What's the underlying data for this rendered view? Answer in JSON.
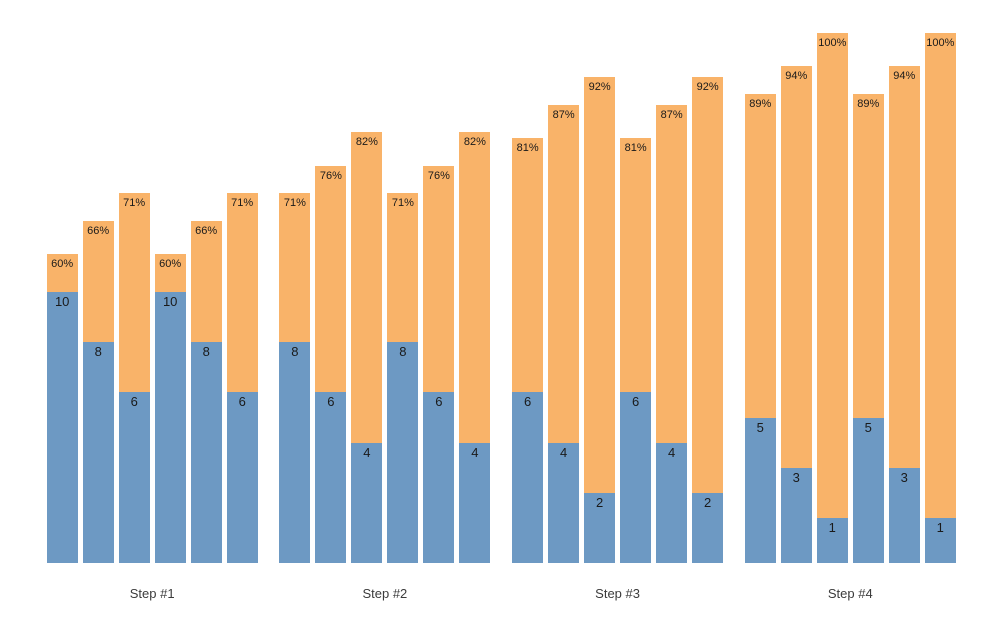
{
  "chart_data": {
    "type": "bar",
    "subtype": "stacked",
    "title": "",
    "xlabel": "",
    "ylabel": "",
    "grid": false,
    "legend": "none",
    "categories": [
      "Step #1",
      "Step #2",
      "Step #3",
      "Step #4"
    ],
    "bar_label_format": {
      "top_segment": "percent",
      "bottom_segment": "count"
    },
    "groups": [
      {
        "label": "Step #1",
        "bars": [
          {
            "count": 10,
            "pct": 60
          },
          {
            "count": 8,
            "pct": 66
          },
          {
            "count": 6,
            "pct": 71
          },
          {
            "count": 10,
            "pct": 60
          },
          {
            "count": 8,
            "pct": 66
          },
          {
            "count": 6,
            "pct": 71
          }
        ]
      },
      {
        "label": "Step #2",
        "bars": [
          {
            "count": 8,
            "pct": 71
          },
          {
            "count": 6,
            "pct": 76
          },
          {
            "count": 4,
            "pct": 82
          },
          {
            "count": 8,
            "pct": 71
          },
          {
            "count": 6,
            "pct": 76
          },
          {
            "count": 4,
            "pct": 82
          }
        ]
      },
      {
        "label": "Step #3",
        "bars": [
          {
            "count": 6,
            "pct": 81
          },
          {
            "count": 4,
            "pct": 87
          },
          {
            "count": 2,
            "pct": 92
          },
          {
            "count": 6,
            "pct": 81
          },
          {
            "count": 4,
            "pct": 87
          },
          {
            "count": 2,
            "pct": 92
          }
        ]
      },
      {
        "label": "Step #4",
        "bars": [
          {
            "count": 5,
            "pct": 89
          },
          {
            "count": 3,
            "pct": 94
          },
          {
            "count": 1,
            "pct": 100
          },
          {
            "count": 5,
            "pct": 89
          },
          {
            "count": 3,
            "pct": 94
          },
          {
            "count": 1,
            "pct": 100
          }
        ]
      }
    ],
    "colors": {
      "bottom_segment": "#6D99C3",
      "top_segment": "#F9B369",
      "value_label": "#1a1a1a",
      "axis_label": "#3b3b3b",
      "background": "#ffffff"
    },
    "pct_axis_range": [
      0,
      100
    ]
  }
}
